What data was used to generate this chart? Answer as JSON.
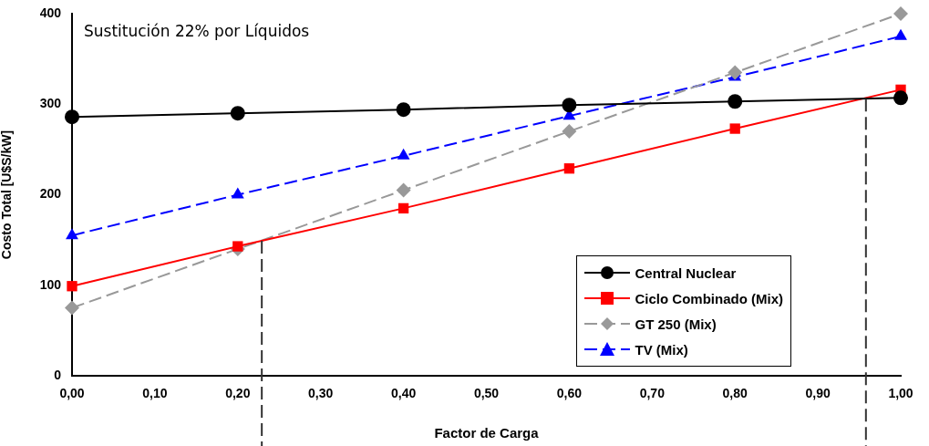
{
  "chart_data": {
    "type": "line",
    "title": "Sustitución 22% por Líquidos",
    "xlabel": "Factor de Carga",
    "ylabel": "Costo Total [U$S/kW]",
    "x": [
      0,
      0.2,
      0.4,
      0.6,
      0.8,
      1.0
    ],
    "series": [
      {
        "name": "Central Nuclear",
        "color": "#000000",
        "marker": "circle",
        "line_style": "solid",
        "values": [
          286,
          290,
          294,
          299,
          303,
          307
        ]
      },
      {
        "name": "Ciclo Combinado (Mix)",
        "color": "#ff0000",
        "marker": "square",
        "line_style": "solid",
        "values": [
          99,
          143,
          185,
          229,
          273,
          316
        ]
      },
      {
        "name": "GT 250 (Mix)",
        "color": "#999999",
        "marker": "diamond",
        "line_style": "dashed",
        "values": [
          75,
          140,
          205,
          270,
          335,
          400
        ]
      },
      {
        "name": "TV (Mix)",
        "color": "#0000ff",
        "marker": "triangle",
        "line_style": "dashed",
        "values": [
          155,
          200,
          243,
          287,
          330,
          375
        ]
      }
    ],
    "xlim": [
      0,
      1
    ],
    "xticks": [
      {
        "value": 0,
        "label": "0,00"
      },
      {
        "value": 0.1,
        "label": "0,10"
      },
      {
        "value": 0.2,
        "label": "0,20"
      },
      {
        "value": 0.3,
        "label": "0,30"
      },
      {
        "value": 0.4,
        "label": "0,40"
      },
      {
        "value": 0.5,
        "label": "0,50"
      },
      {
        "value": 0.6,
        "label": "0,60"
      },
      {
        "value": 0.7,
        "label": "0,70"
      },
      {
        "value": 0.8,
        "label": "0,80"
      },
      {
        "value": 0.9,
        "label": "0,90"
      },
      {
        "value": 1,
        "label": "1,00"
      }
    ],
    "ylim": [
      0,
      400
    ],
    "yticks": [
      0,
      100,
      200,
      300,
      400
    ],
    "ref_lines": [
      {
        "axis": "x",
        "value": 0.229,
        "color": "#333333",
        "line_style": "dashed"
      },
      {
        "axis": "x",
        "value": 0.958,
        "color": "#333333",
        "line_style": "dashed"
      }
    ],
    "grid": false,
    "legend": "bottom right"
  }
}
